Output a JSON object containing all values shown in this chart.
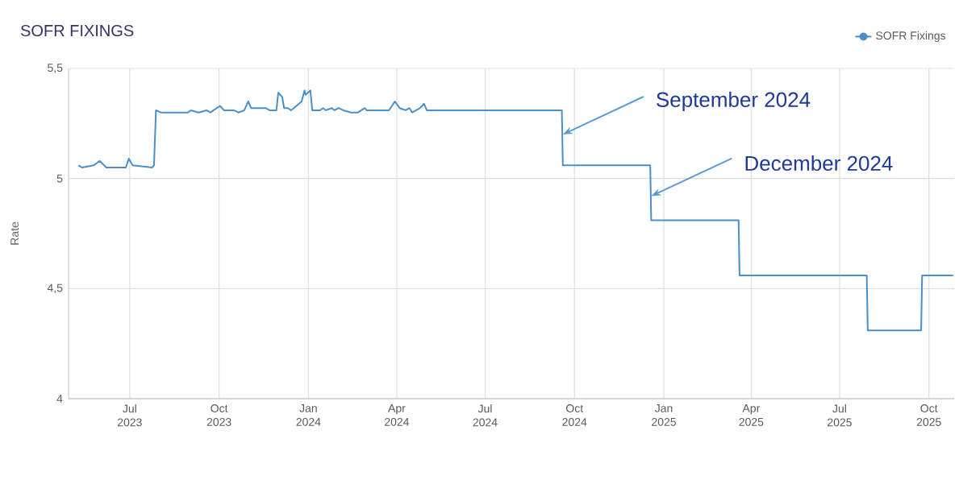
{
  "chart_data": {
    "type": "line",
    "title": "SOFR FIXINGS",
    "ylabel": "Rate",
    "xlim": [
      "2023-04-29",
      "2025-10-27"
    ],
    "ylim": [
      4,
      5.5
    ],
    "xticks": [
      {
        "value": "2023-07-01",
        "label": "Jul 2023"
      },
      {
        "value": "2023-10-01",
        "label": "Oct 2023"
      },
      {
        "value": "2024-01-01",
        "label": "Jan 2024"
      },
      {
        "value": "2024-04-01",
        "label": "Apr 2024"
      },
      {
        "value": "2024-07-01",
        "label": "Jul 2024"
      },
      {
        "value": "2024-10-01",
        "label": "Oct 2024"
      },
      {
        "value": "2025-01-01",
        "label": "Jan 2025"
      },
      {
        "value": "2025-04-01",
        "label": "Apr 2025"
      },
      {
        "value": "2025-07-01",
        "label": "Jul 2025"
      },
      {
        "value": "2025-10-01",
        "label": "Oct 2025"
      }
    ],
    "yticks": [
      4,
      {
        "value": 4.5,
        "label": "4,5"
      },
      5,
      {
        "value": 5.5,
        "label": "5,5"
      }
    ],
    "grid": true,
    "legend": "top right",
    "annotations": [
      {
        "text": "September 2024",
        "x": "2024-09-19",
        "y": 5.2
      },
      {
        "text": "December 2024",
        "x": "2024-12-19",
        "y": 4.92
      }
    ],
    "series": [
      {
        "name": "SOFR Fixings",
        "color": "#4a90c8",
        "x": [
          "2023-05-09",
          "2023-05-13",
          "2023-05-25",
          "2023-05-31",
          "2023-06-07",
          "2023-06-27",
          "2023-06-30",
          "2023-07-04",
          "2023-07-24",
          "2023-07-26",
          "2023-07-28",
          "2023-08-02",
          "2023-08-30",
          "2023-09-02",
          "2023-09-10",
          "2023-09-18",
          "2023-09-22",
          "2023-10-02",
          "2023-10-06",
          "2023-10-16",
          "2023-10-21",
          "2023-10-27",
          "2023-10-31",
          "2023-11-03",
          "2023-11-18",
          "2023-11-22",
          "2023-11-29",
          "2023-12-01",
          "2023-12-05",
          "2023-12-07",
          "2023-12-11",
          "2023-12-14",
          "2023-12-17",
          "2023-12-25",
          "2023-12-28",
          "2023-12-29",
          "2024-01-03",
          "2024-01-05",
          "2024-01-13",
          "2024-01-16",
          "2024-01-19",
          "2024-01-25",
          "2024-01-28",
          "2024-02-01",
          "2024-02-06",
          "2024-02-14",
          "2024-02-21",
          "2024-02-28",
          "2024-03-01",
          "2024-03-24",
          "2024-03-30",
          "2024-04-04",
          "2024-04-10",
          "2024-04-14",
          "2024-04-17",
          "2024-04-25",
          "2024-04-29",
          "2024-05-02",
          "2024-09-18",
          "2024-09-19",
          "2024-12-18",
          "2024-12-19",
          "2025-03-19",
          "2025-03-20",
          "2025-07-29",
          "2025-07-30",
          "2025-09-23",
          "2025-09-24",
          "2025-10-26"
        ],
        "values": [
          5.06,
          5.05,
          5.06,
          5.08,
          5.05,
          5.05,
          5.09,
          5.06,
          5.05,
          5.06,
          5.31,
          5.3,
          5.3,
          5.31,
          5.3,
          5.31,
          5.3,
          5.33,
          5.31,
          5.31,
          5.3,
          5.31,
          5.35,
          5.32,
          5.32,
          5.31,
          5.31,
          5.39,
          5.37,
          5.32,
          5.32,
          5.31,
          5.32,
          5.35,
          5.4,
          5.38,
          5.4,
          5.31,
          5.31,
          5.32,
          5.31,
          5.32,
          5.31,
          5.32,
          5.31,
          5.3,
          5.3,
          5.32,
          5.31,
          5.31,
          5.35,
          5.32,
          5.31,
          5.32,
          5.3,
          5.32,
          5.34,
          5.31,
          5.31,
          5.06,
          5.06,
          4.81,
          4.81,
          4.56,
          4.56,
          4.31,
          4.31,
          4.56,
          4.56
        ]
      }
    ]
  }
}
